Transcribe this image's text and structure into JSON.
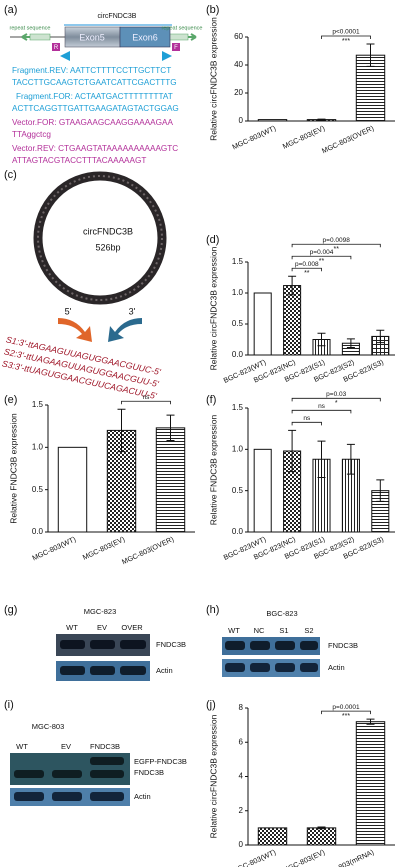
{
  "panel_labels": [
    "(a)",
    "(b)",
    "(c)",
    "(d)",
    "(e)",
    "(f)",
    "(g)",
    "(h)",
    "(i)",
    "(j)"
  ],
  "panel_a": {
    "title": "circFNDC3B",
    "repeat_labels": [
      "repeat sequence",
      "repeat sequence"
    ],
    "exons": [
      "Exon5",
      "Exon6"
    ],
    "primers": [
      "R",
      "F"
    ],
    "fragment_lines": [
      "Fragment.REV: AATTCTTTTCCTTGCTTCT",
      "TACCTTGCAAGTCTGAATCATTCGACTTTG",
      "Fragment.FOR: ACTAATGACTTTTTTTTAT",
      "ACTTCAGGTTGATTGAAGATAGTACTGGAG"
    ],
    "vector_lines": [
      "Vector.FOR: GTAAGAAGCAAGGAAAAGAA",
      "TTAggctcg",
      "Vector.REV: CTGAAGTATAAAAAAAAAAGTC",
      "ATTAGTACGTACCTTTACAAAAAGT"
    ]
  },
  "panel_c": {
    "label": "circFNDC3B",
    "size": "526bp",
    "ends": [
      "5'",
      "3'"
    ],
    "sirnas": [
      "S1:3'-ttAGAAGUUAGUGGAACGUUC-5'",
      "S2:3'-ttUAGAAGUUAGUGGAACGUU-5'",
      "S3:3'-ttUAGUGGAACGUUCAGACUU-5'"
    ]
  },
  "panel_g": {
    "title": "MGC-823",
    "lanes": [
      "WT",
      "EV",
      "OVER"
    ],
    "bands": [
      "FNDC3B",
      "Actin"
    ]
  },
  "panel_h": {
    "title": "BGC-823",
    "lanes": [
      "WT",
      "NC",
      "S1",
      "S2"
    ],
    "bands": [
      "FNDC3B",
      "Actin"
    ]
  },
  "panel_i": {
    "title": "MGC-803",
    "lanes": [
      "WT",
      "EV",
      "FNDC3B"
    ],
    "bands": [
      "EGFP-FNDC3B",
      "FNDC3B",
      "Actin"
    ]
  },
  "chart_data": [
    {
      "type": "bar",
      "ylabel": "Relative circFNDC3B expression",
      "categories": [
        "MGC-803(WT)",
        "MGC-803(EV)",
        "MGC-803(OVER)"
      ],
      "values": [
        1,
        1,
        47
      ],
      "errors": [
        null,
        0.3,
        8
      ],
      "patterns": [
        "solid",
        "checker",
        "hlines"
      ],
      "ylim": [
        0,
        60
      ],
      "yticks": [
        0,
        20,
        40,
        60
      ],
      "annotations": [
        {
          "from": "MGC-803(EV)",
          "to": "MGC-803(OVER)",
          "label": "p<0.0001",
          "stars": "***"
        }
      ]
    },
    {
      "type": "bar",
      "ylabel": "Relative circFNDC3B expression",
      "categories": [
        "BGC-823(WT)",
        "BGC-823(NC)",
        "BGC-823(S1)",
        "BGC-823(S2)",
        "BGC-823(S3)"
      ],
      "values": [
        1.0,
        1.12,
        0.25,
        0.19,
        0.3
      ],
      "errors": [
        null,
        0.15,
        0.1,
        0.07,
        0.1
      ],
      "patterns": [
        "solid",
        "checker",
        "vlines",
        "hlines",
        "grid"
      ],
      "ylim": [
        0,
        1.5
      ],
      "yticks": [
        {
          "value": 0,
          "label": "0.0"
        },
        0.5,
        {
          "value": 1,
          "label": "1.0"
        },
        1.5
      ],
      "annotations": [
        {
          "from": "BGC-823(NC)",
          "to": "BGC-823(S1)",
          "label": "p=0.008",
          "stars": "**"
        },
        {
          "from": "BGC-823(NC)",
          "to": "BGC-823(S2)",
          "label": "p=0.004",
          "stars": "**"
        },
        {
          "from": "BGC-823(NC)",
          "to": "BGC-823(S3)",
          "label": "p=0.0098",
          "stars": "**"
        }
      ]
    },
    {
      "type": "bar",
      "ylabel": "Relative FNDC3B expression",
      "categories": [
        "MGC-803(WT)",
        "MGC-803(EV)",
        "MGC-803(OVER)"
      ],
      "values": [
        1.0,
        1.2,
        1.23
      ],
      "errors": [
        null,
        0.25,
        0.15
      ],
      "patterns": [
        "solid",
        "checker",
        "hlines"
      ],
      "ylim": [
        0,
        1.5
      ],
      "yticks": [
        {
          "value": 0,
          "label": "0.0"
        },
        0.5,
        {
          "value": 1,
          "label": "1.0"
        },
        1.5
      ],
      "annotations": [
        {
          "from": "MGC-803(EV)",
          "to": "MGC-803(OVER)",
          "label": "ns"
        }
      ]
    },
    {
      "type": "bar",
      "ylabel": "Relative FNDC3B expression",
      "categories": [
        "BGC-823(WT)",
        "BGC-823(NC)",
        "BGC-823(S1)",
        "BGC-823(S2)",
        "BGC-823(S3)"
      ],
      "values": [
        1.0,
        0.98,
        0.88,
        0.88,
        0.5
      ],
      "errors": [
        null,
        0.25,
        0.22,
        0.18,
        0.13
      ],
      "patterns": [
        "solid",
        "checker",
        "vlines",
        "vlines",
        "hlines"
      ],
      "ylim": [
        0,
        1.5
      ],
      "yticks": [
        {
          "value": 0,
          "label": "0.0"
        },
        0.5,
        {
          "value": 1,
          "label": "1.0"
        },
        1.5
      ],
      "annotations": [
        {
          "from": "BGC-823(NC)",
          "to": "BGC-823(S1)",
          "label": "ns"
        },
        {
          "from": "BGC-823(NC)",
          "to": "BGC-823(S2)",
          "label": "ns"
        },
        {
          "from": "BGC-823(NC)",
          "to": "BGC-823(S3)",
          "label": "p=0.03",
          "stars": "*"
        }
      ]
    },
    {
      "type": "bar",
      "ylabel": "Relative circFNDC3B expression",
      "categories": [
        "MGC-803(WT)",
        "MGC-803(EV)",
        "MGC-803(mRNA)"
      ],
      "values": [
        1.0,
        1.0,
        7.2
      ],
      "errors": [
        null,
        0.05,
        0.15
      ],
      "patterns": [
        "checker",
        "checker",
        "hlines"
      ],
      "ylim": [
        0,
        8
      ],
      "yticks": [
        0,
        2,
        4,
        6,
        8
      ],
      "annotations": [
        {
          "from": "MGC-803(EV)",
          "to": "MGC-803(mRNA)",
          "label": "p=0.0001",
          "stars": "***"
        }
      ]
    }
  ]
}
